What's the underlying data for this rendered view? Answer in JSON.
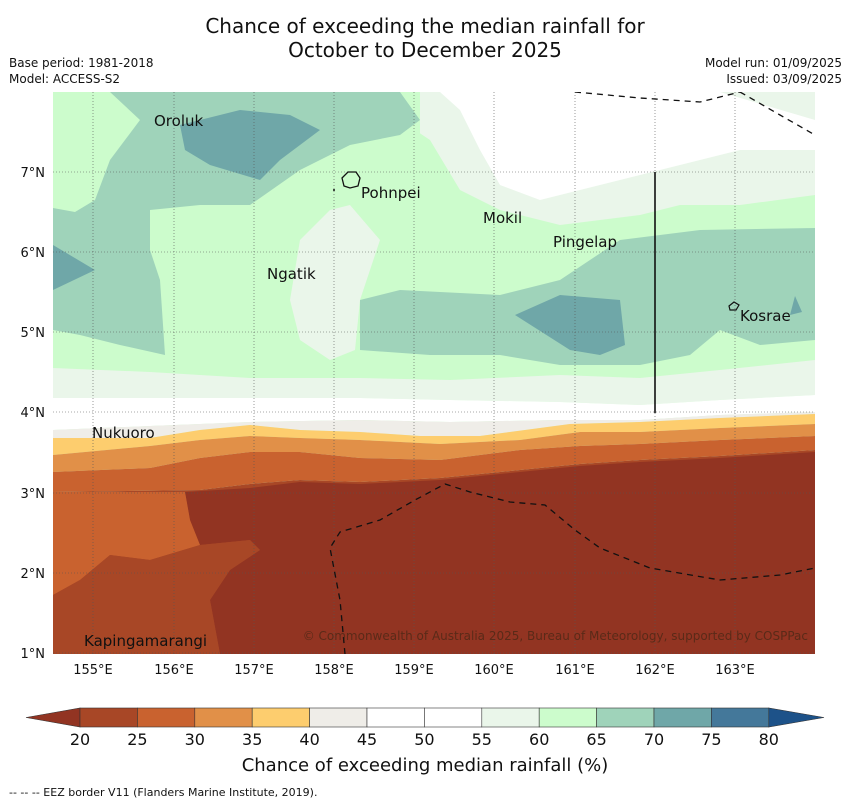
{
  "header": {
    "title_line1": "Chance of exceeding the median rainfall for",
    "title_line2": "October to December 2025",
    "base_period": "Base period: 1981-2018",
    "model": "Model: ACCESS-S2",
    "model_run": "Model run: 01/09/2025",
    "issued": "Issued: 03/09/2025"
  },
  "map": {
    "lon_ticks": [
      "155°E",
      "156°E",
      "157°E",
      "158°E",
      "159°E",
      "160°E",
      "161°E",
      "162°E",
      "163°E"
    ],
    "lat_ticks": [
      "7°N",
      "6°N",
      "5°N",
      "4°N",
      "3°N",
      "2°N",
      "1°N"
    ],
    "places": [
      "Oroluk",
      "Pohnpei",
      "Mokil",
      "Pingelap",
      "Ngatik",
      "Kosrae",
      "Nukuoro",
      "Kapingamarangi"
    ],
    "copyright": "© Commonwealth of Australia 2025, Bureau of Meteorology, supported by COSPPac"
  },
  "colorbar": {
    "title": "Chance of exceeding median rainfall (%)",
    "ticks": [
      "20",
      "25",
      "30",
      "35",
      "40",
      "45",
      "50",
      "55",
      "60",
      "65",
      "70",
      "75",
      "80"
    ],
    "colors": [
      "#a84726",
      "#c9622f",
      "#e19048",
      "#fdcd6e",
      "#efede8",
      "#ffffff",
      "#ffffff",
      "#eaf6ea",
      "#ccfccc",
      "#9fd3ba",
      "#6fa7a8",
      "#44789a"
    ],
    "under_color": "#923422",
    "over_color": "#1d5289"
  },
  "legend": {
    "eez_note": "--  --  -- EEZ border V11 (Flanders Marine Institute, 2019)."
  }
}
